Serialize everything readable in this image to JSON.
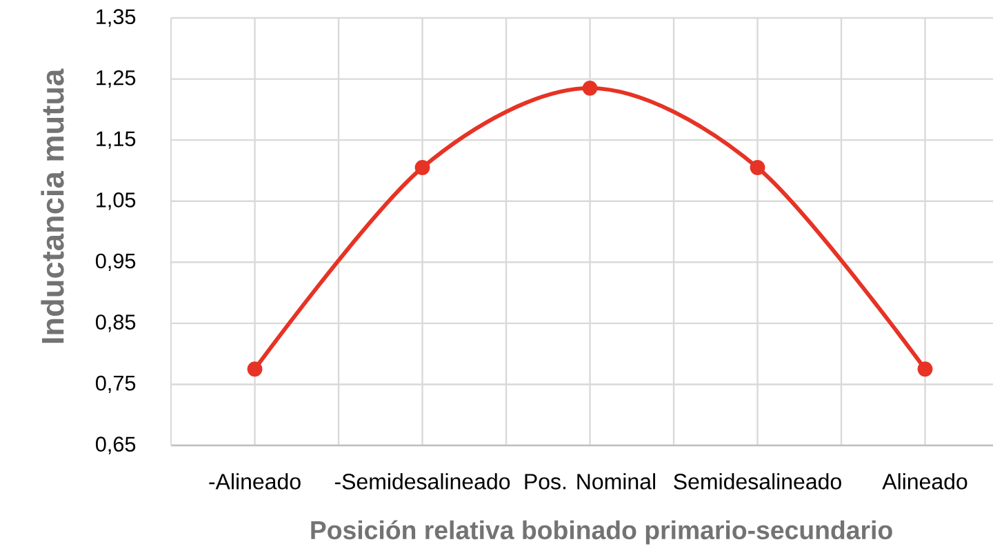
{
  "chart_data": {
    "type": "line",
    "xlabel": "Posición relativa bobinado primario-secundario",
    "ylabel": "Inductancia mutua",
    "categories": [
      "-Alineado",
      "-Semidesalineado",
      "Pos. Nominal",
      "Semidesalineado",
      "Alineado"
    ],
    "values": [
      0.775,
      1.105,
      1.235,
      1.105,
      0.775
    ],
    "color": "#e63325",
    "ylim": [
      0.65,
      1.35
    ],
    "yticks": [
      {
        "value": 0.65,
        "label": "0,65"
      },
      {
        "value": 0.75,
        "label": "0,75"
      },
      {
        "value": 0.85,
        "label": "0,85"
      },
      {
        "value": 0.95,
        "label": "0,95"
      },
      {
        "value": 1.05,
        "label": "1,05"
      },
      {
        "value": 1.15,
        "label": "1,15"
      },
      {
        "value": 1.25,
        "label": "1,25"
      },
      {
        "value": 1.35,
        "label": "1,35"
      }
    ],
    "grid": true,
    "marker": "circle",
    "line_style": "solid"
  }
}
